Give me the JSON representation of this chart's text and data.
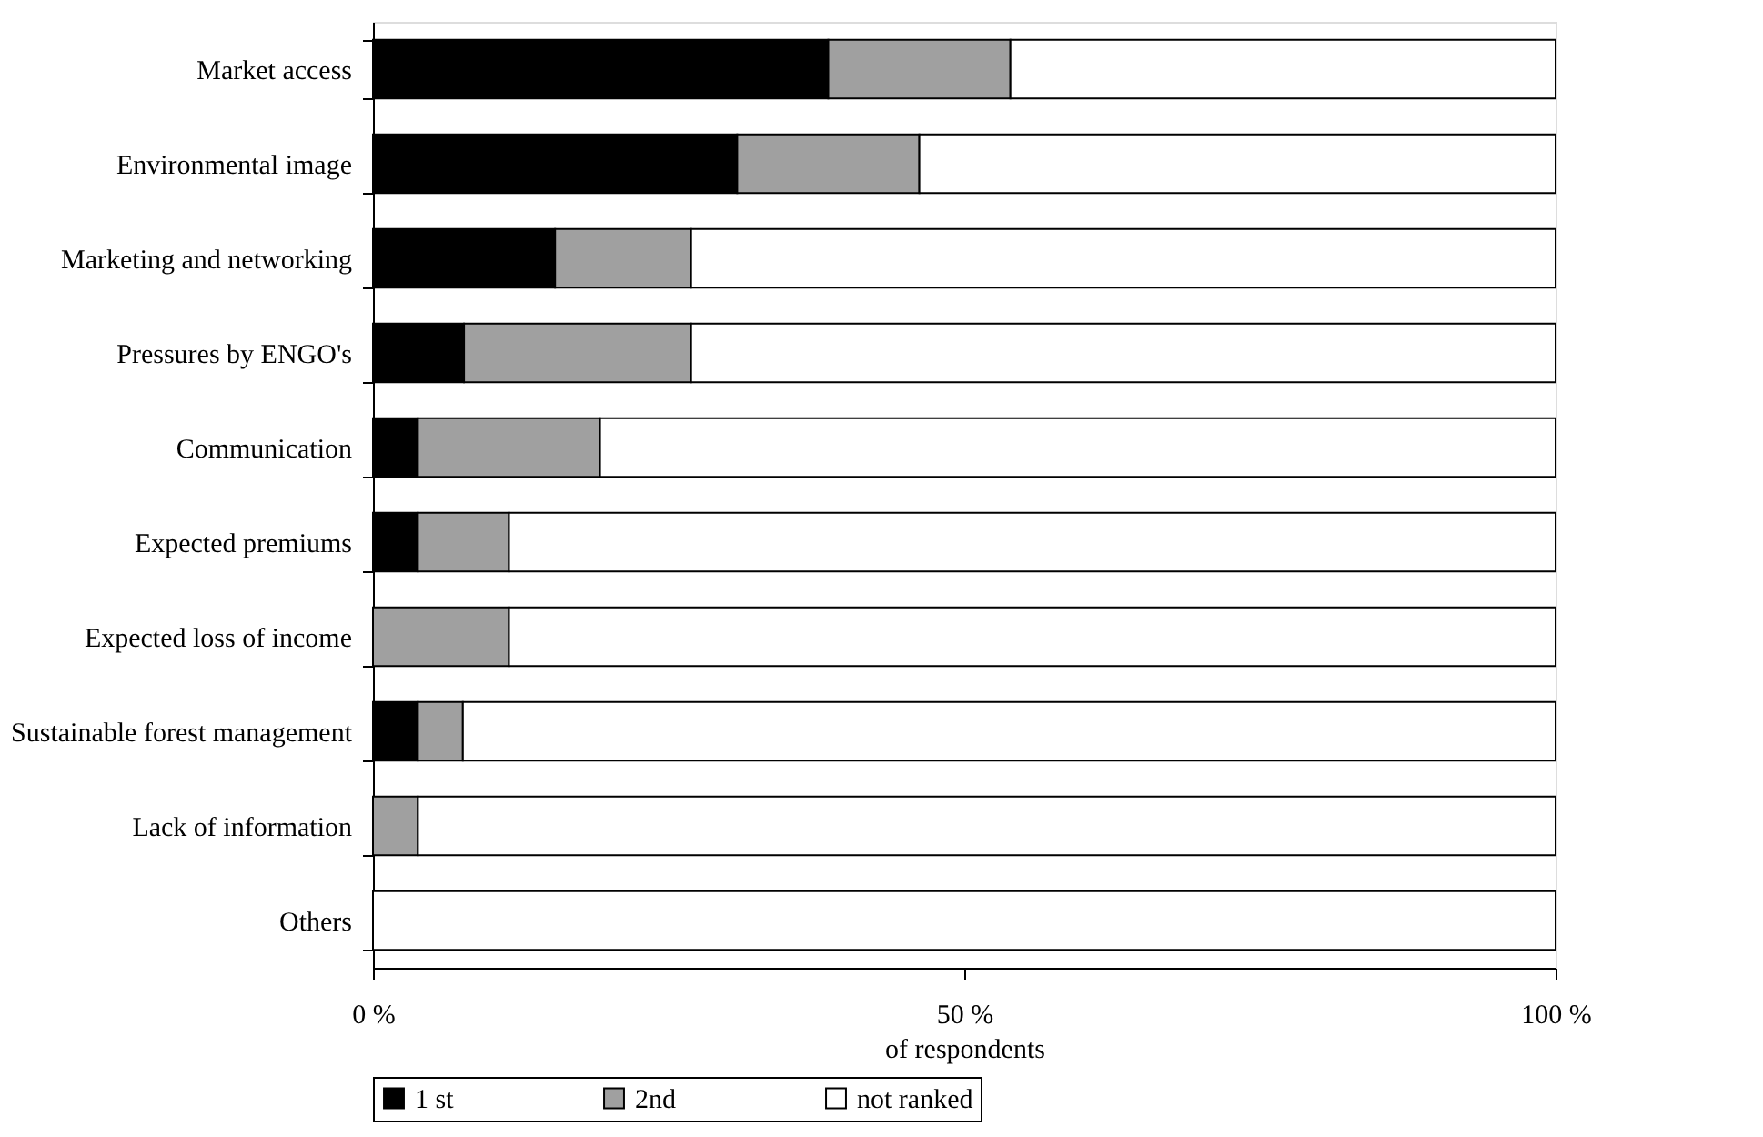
{
  "chart_data": {
    "type": "bar",
    "orientation": "horizontal",
    "stacked": true,
    "categories": [
      "Market access",
      "Environmental image",
      "Marketing and networking",
      "Pressures by ENGO's",
      "Communication",
      "Expected premiums",
      "Expected loss of income",
      "Sustainable forest management",
      "Lack of information",
      "Others"
    ],
    "series": [
      {
        "name": "1 st",
        "color": "#000000",
        "values": [
          38.5,
          30.8,
          15.4,
          7.7,
          3.8,
          3.8,
          0,
          3.8,
          0,
          0
        ]
      },
      {
        "name": "2nd",
        "color": "#a0a0a0",
        "values": [
          15.4,
          15.4,
          11.5,
          19.2,
          15.4,
          7.7,
          11.5,
          3.8,
          3.8,
          0
        ]
      },
      {
        "name": "not ranked",
        "color": "#ffffff",
        "values": [
          46.1,
          53.8,
          73.1,
          73.1,
          80.8,
          88.5,
          88.5,
          92.4,
          96.2,
          100
        ]
      }
    ],
    "xlabel": "of respondents",
    "xlim": [
      0,
      100
    ],
    "xticks": [
      {
        "value": 0,
        "label": "0 %"
      },
      {
        "value": 50,
        "label": "50 %"
      },
      {
        "value": 100,
        "label": "100 %"
      }
    ],
    "grid": false,
    "legend": "bottom"
  }
}
